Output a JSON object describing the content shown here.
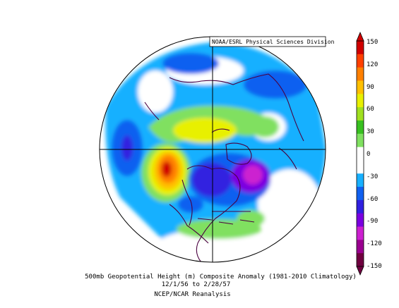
{
  "credit": "NOAA/ESRL Physical Sciences Division",
  "caption": {
    "line1": "500mb Geopotential Height (m) Composite Anomaly (1981-2010 Climatology)",
    "line2": "12/1/56  to 2/28/57",
    "line3": "NCEP/NCAR Reanalysis"
  },
  "colorbar": {
    "ticks": [
      "150",
      "120",
      "90",
      "60",
      "30",
      "0",
      "-30",
      "-60",
      "-90",
      "-120",
      "-150"
    ],
    "colors": [
      "#700040",
      "#9a0090",
      "#cc20d0",
      "#7a00e0",
      "#3020e0",
      "#1060f0",
      "#18b0ff",
      "#ffffff",
      "#ffffff",
      "#80e060",
      "#38c020",
      "#a0e020",
      "#e8f000",
      "#ffc000",
      "#ff8000",
      "#ff4000",
      "#d00000"
    ]
  }
}
